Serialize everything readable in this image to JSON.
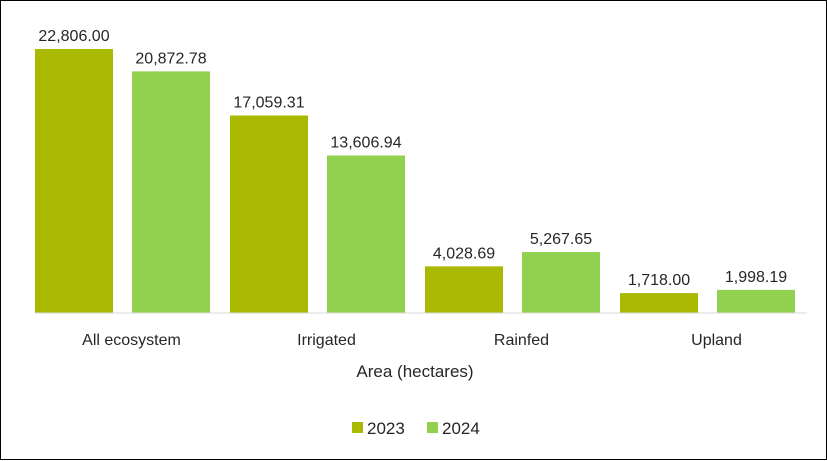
{
  "chart_data": {
    "type": "bar",
    "categories": [
      "All ecosystem",
      "Irrigated",
      "Rainfed",
      "Upland"
    ],
    "series": [
      {
        "name": "2023",
        "values": [
          22806.0,
          17059.31,
          4028.69,
          1718.0
        ],
        "color": "#a9b800"
      },
      {
        "name": "2024",
        "values": [
          20872.78,
          13606.94,
          5267.65,
          1998.19
        ],
        "color": "#92d050"
      }
    ],
    "data_labels": [
      [
        "22,806.00",
        "17,059.31",
        "4,028.69",
        "1,718.00"
      ],
      [
        "20,872.78",
        "13,606.94",
        "5,267.65",
        "1,998.19"
      ]
    ],
    "title": "",
    "xlabel": "Area (hectares)",
    "ylabel": "",
    "ylim": [
      0,
      23000
    ],
    "grid": false,
    "legend_position": "bottom"
  }
}
